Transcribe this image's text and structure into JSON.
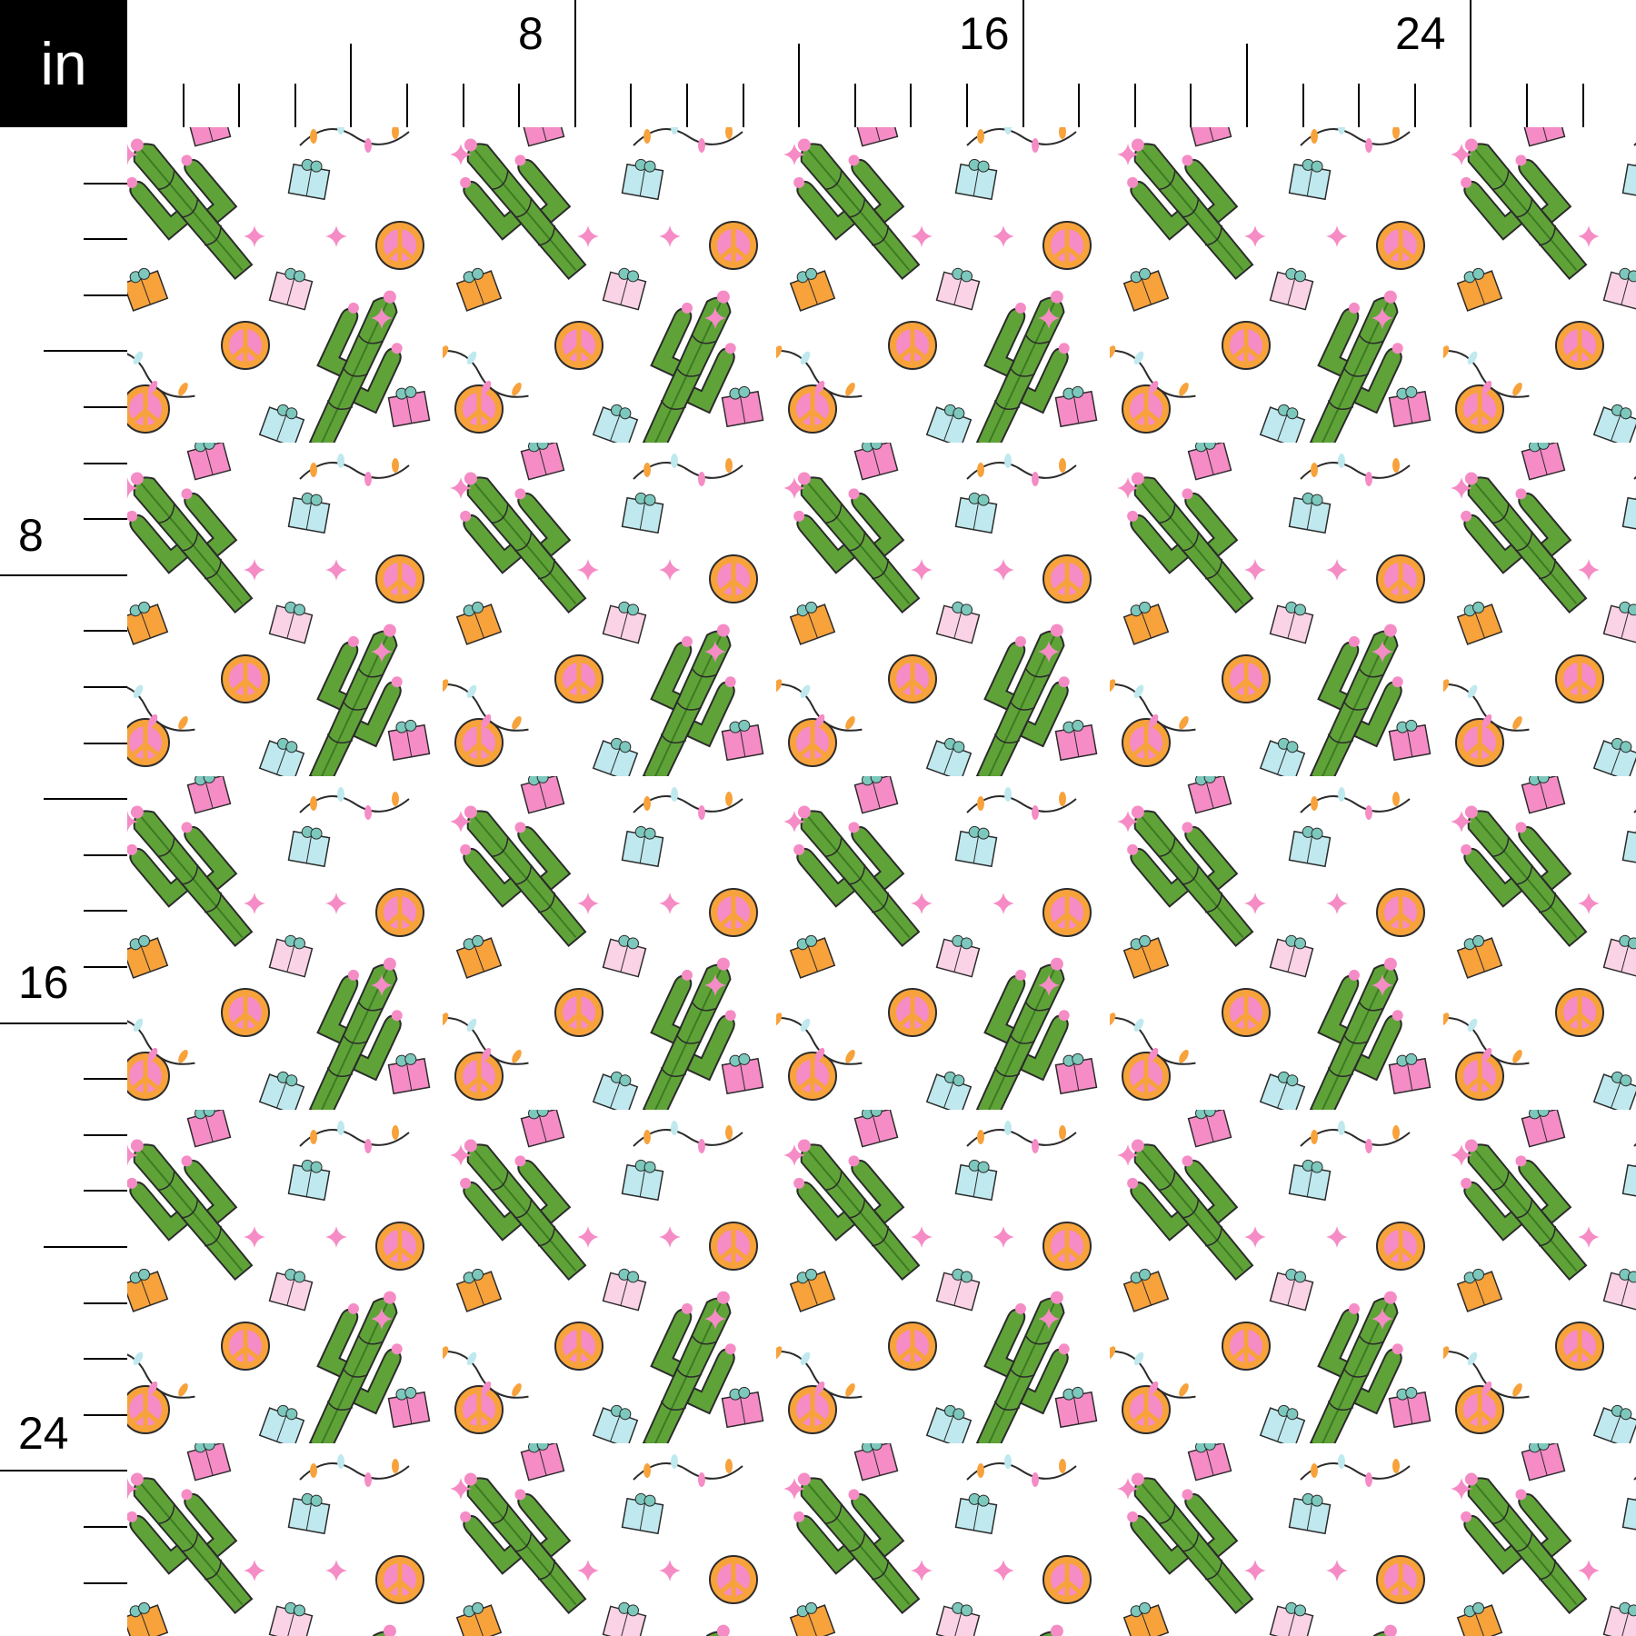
{
  "ruler": {
    "unit": "in",
    "top_labels": [
      "8",
      "16",
      "24"
    ],
    "left_labels": [
      "8",
      "16",
      "24"
    ]
  },
  "fabric": {
    "motifs": [
      "cactus-with-lights",
      "peace-sign",
      "gift-box",
      "string-lights",
      "sparkle"
    ],
    "colors": {
      "cactus": "#5fa338",
      "pink": "#f58cc6",
      "light_pink": "#fbd3e6",
      "orange": "#f7a23b",
      "aqua": "#bfe9ee",
      "outline": "#2b2b2b",
      "background": "#ffffff"
    }
  }
}
